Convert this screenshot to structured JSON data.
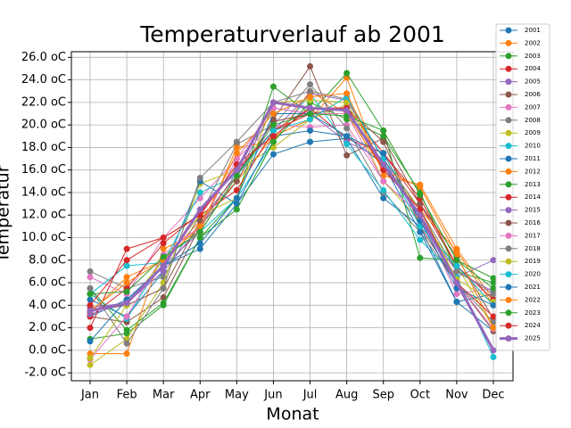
{
  "chart_data": {
    "type": "line",
    "title": "Temperaturverlauf ab 2001",
    "x_label": "Monat",
    "y_label": "Temperatur",
    "categories": [
      "Jan",
      "Feb",
      "Mar",
      "Apr",
      "May",
      "Jun",
      "Jul",
      "Aug",
      "Sep",
      "Oct",
      "Nov",
      "Dec"
    ],
    "ylim": [
      -2.7,
      26.5
    ],
    "yticks": [
      {
        "value": -2,
        "label": "-2.0 oC"
      },
      {
        "value": 0,
        "label": "0.0 oC"
      },
      {
        "value": 2,
        "label": "2.0 oC"
      },
      {
        "value": 4,
        "label": "4.0 oC"
      },
      {
        "value": 6,
        "label": "6.0 oC"
      },
      {
        "value": 8,
        "label": "8.0 oC"
      },
      {
        "value": 10,
        "label": "10.0 oC"
      },
      {
        "value": 12,
        "label": "12.0 oC"
      },
      {
        "value": 14,
        "label": "14.0 oC"
      },
      {
        "value": 16,
        "label": "16.0 oC"
      },
      {
        "value": 18,
        "label": "18.0 oC"
      },
      {
        "value": 20,
        "label": "20.0 oC"
      },
      {
        "value": 22,
        "label": "22.0 oC"
      },
      {
        "value": 24,
        "label": "24.0 oC"
      },
      {
        "value": 26,
        "label": "26.0 oC"
      }
    ],
    "grid": true,
    "legend": "right",
    "series": [
      {
        "name": "2001",
        "color": "#1f77b4",
        "values": [
          3.0,
          4.5,
          7.5,
          9.0,
          13.0,
          17.4,
          18.5,
          18.8,
          13.5,
          11.0,
          4.3,
          1.7
        ]
      },
      {
        "name": "2002",
        "color": "#ff7f0e",
        "values": [
          3.3,
          6.5,
          8.0,
          11.5,
          15.0,
          19.0,
          20.5,
          24.2,
          15.5,
          14.7,
          9.0,
          4.5
        ]
      },
      {
        "name": "2003",
        "color": "#2ca02c",
        "values": [
          1.0,
          1.5,
          4.0,
          10.0,
          13.5,
          23.4,
          21.0,
          24.6,
          19.5,
          8.2,
          8.0,
          6.4
        ]
      },
      {
        "name": "2004",
        "color": "#d62728",
        "values": [
          2.0,
          9.0,
          10.0,
          12.0,
          14.2,
          19.5,
          21.5,
          18.8,
          17.5,
          13.0,
          7.5,
          4.0
        ]
      },
      {
        "name": "2005",
        "color": "#9467bd",
        "values": [
          3.8,
          4.2,
          7.5,
          10.5,
          15.5,
          21.5,
          21.0,
          18.5,
          17.0,
          11.5,
          6.5,
          8.0
        ]
      },
      {
        "name": "2006",
        "color": "#8c564b",
        "values": [
          3.0,
          2.5,
          4.7,
          11.0,
          15.0,
          20.5,
          25.2,
          17.3,
          18.8,
          13.0,
          8.3,
          2.8
        ]
      },
      {
        "name": "2007",
        "color": "#e377c2",
        "values": [
          6.5,
          5.0,
          10.0,
          13.5,
          17.0,
          20.0,
          19.8,
          20.0,
          15.0,
          12.0,
          5.0,
          5.5
        ]
      },
      {
        "name": "2008",
        "color": "#7f7f7f",
        "values": [
          7.0,
          5.5,
          6.5,
          12.0,
          18.3,
          20.0,
          23.6,
          19.7,
          14.0,
          10.5,
          6.0,
          2.5
        ]
      },
      {
        "name": "2009",
        "color": "#bcbd22",
        "values": [
          -1.3,
          1.0,
          6.0,
          14.8,
          16.0,
          18.0,
          20.5,
          21.8,
          15.0,
          11.5,
          7.5,
          2.0
        ]
      },
      {
        "name": "2010",
        "color": "#17becf",
        "values": [
          5.0,
          2.8,
          8.2,
          10.5,
          13.5,
          18.5,
          22.8,
          18.3,
          14.2,
          9.8,
          6.5,
          -0.6
        ]
      },
      {
        "name": "2011",
        "color": "#1f77b4",
        "values": [
          4.5,
          3.0,
          7.0,
          15.0,
          13.0,
          19.0,
          19.5,
          19.0,
          16.5,
          10.5,
          4.3,
          5.0
        ]
      },
      {
        "name": "2012",
        "color": "#ff7f0e",
        "values": [
          -0.3,
          -0.3,
          9.0,
          10.5,
          18.0,
          18.5,
          23.0,
          21.0,
          16.0,
          12.5,
          8.8,
          4.0
        ]
      },
      {
        "name": "2013",
        "color": "#2ca02c",
        "values": [
          5.5,
          1.8,
          4.2,
          10.0,
          12.5,
          18.5,
          22.0,
          20.5,
          19.0,
          14.0,
          7.0,
          6.0
        ]
      },
      {
        "name": "2014",
        "color": "#d62728",
        "values": [
          3.0,
          5.5,
          9.5,
          12.2,
          16.0,
          19.5,
          21.0,
          21.5,
          17.5,
          13.5,
          7.5,
          4.5
        ]
      },
      {
        "name": "2015",
        "color": "#9467bd",
        "values": [
          3.2,
          4.2,
          7.0,
          11.0,
          15.8,
          19.5,
          22.8,
          22.2,
          17.0,
          11.5,
          7.0,
          5.2
        ]
      },
      {
        "name": "2016",
        "color": "#8c564b",
        "values": [
          3.5,
          4.0,
          5.5,
          11.5,
          15.5,
          20.3,
          21.0,
          21.5,
          18.5,
          11.0,
          6.0,
          1.7
        ]
      },
      {
        "name": "2017",
        "color": "#e377c2",
        "values": [
          -0.8,
          3.0,
          8.5,
          11.0,
          17.0,
          21.5,
          21.0,
          21.0,
          15.0,
          12.0,
          6.0,
          1.9
        ]
      },
      {
        "name": "2018",
        "color": "#7f7f7f",
        "values": [
          5.5,
          0.6,
          5.5,
          15.3,
          18.5,
          22.0,
          23.0,
          22.3,
          17.0,
          12.5,
          7.0,
          5.0
        ]
      },
      {
        "name": "2019",
        "color": "#bcbd22",
        "values": [
          -0.7,
          4.0,
          8.0,
          12.0,
          13.5,
          22.0,
          22.2,
          22.0,
          16.5,
          12.5,
          6.3,
          4.3
        ]
      },
      {
        "name": "2020",
        "color": "#17becf",
        "values": [
          5.0,
          7.5,
          7.8,
          14.0,
          15.5,
          19.5,
          20.5,
          22.5,
          17.0,
          11.0,
          7.5,
          4.0
        ]
      },
      {
        "name": "2021",
        "color": "#1f77b4",
        "values": [
          0.8,
          4.5,
          7.5,
          9.5,
          13.5,
          21.0,
          21.0,
          19.0,
          17.5,
          11.5,
          5.5,
          4.0
        ]
      },
      {
        "name": "2022",
        "color": "#ff7f0e",
        "values": [
          3.5,
          6.0,
          8.0,
          11.0,
          17.5,
          21.0,
          22.5,
          22.8,
          16.0,
          14.5,
          8.5,
          2.0
        ]
      },
      {
        "name": "2023",
        "color": "#2ca02c",
        "values": [
          5.0,
          5.2,
          8.3,
          10.5,
          15.5,
          20.0,
          21.0,
          20.8,
          19.5,
          13.8,
          8.0,
          5.5
        ]
      },
      {
        "name": "2024",
        "color": "#d62728",
        "values": [
          4.0,
          8.0,
          10.0,
          12.0,
          16.5,
          19.0,
          21.5,
          21.5,
          16.0,
          12.5,
          6.0,
          3.0
        ]
      },
      {
        "name": "2025",
        "color": "#9467bd",
        "linewidth": 3,
        "values": [
          3.5,
          4.2,
          7.5,
          12.5,
          16.0,
          22.0,
          21.5,
          21.3,
          16.5,
          12.0,
          6.0,
          0.0
        ]
      }
    ]
  }
}
